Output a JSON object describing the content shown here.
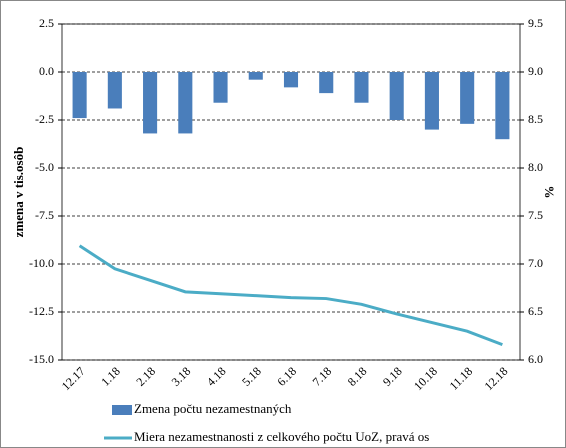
{
  "chart_data": {
    "type": "bar_line",
    "categories": [
      "12.17",
      "1.18",
      "2.18",
      "3.18",
      "4.18",
      "5.18",
      "6.18",
      "7.18",
      "8.18",
      "9.18",
      "10.18",
      "11.18",
      "12.18"
    ],
    "series": [
      {
        "name": "Zmena počtu nezamestnaných",
        "color": "#4a7ebb",
        "type": "bar",
        "values": [
          -2.4,
          -1.9,
          -3.2,
          -3.2,
          -1.6,
          -0.4,
          -0.8,
          -1.1,
          -1.6,
          -2.5,
          -3.0,
          -2.7,
          -3.5
        ]
      },
      {
        "name": "Miera nezamestnanosti z celkového počtu UoZ, pravá os",
        "color": "#4bacc6",
        "type": "line",
        "axis": "y2",
        "values": [
          7.19,
          6.95,
          6.83,
          6.71,
          6.69,
          6.67,
          6.65,
          6.64,
          6.58,
          6.48,
          6.39,
          6.3,
          6.16
        ]
      }
    ],
    "ylabel": "zmena v tis.osôb",
    "y2label": "%",
    "ylim": [
      -15,
      2.5
    ],
    "yticks": [
      2.5,
      {
        "value": 0,
        "label": "0.0"
      },
      -2.5,
      {
        "value": -5,
        "label": "-5.0"
      },
      -7.5,
      {
        "value": -10,
        "label": "-10.0"
      },
      -12.5,
      {
        "value": -15,
        "label": "-15.0"
      }
    ],
    "y2lim": [
      6,
      9.5
    ],
    "y2ticks": [
      9.5,
      {
        "value": 9,
        "label": "9.0"
      },
      8.5,
      {
        "value": 8,
        "label": "8.0"
      },
      7.5,
      {
        "value": 7,
        "label": "7.0"
      },
      6.5,
      {
        "value": 6,
        "label": "6.0"
      }
    ],
    "grid": true,
    "legend": "bottom"
  }
}
